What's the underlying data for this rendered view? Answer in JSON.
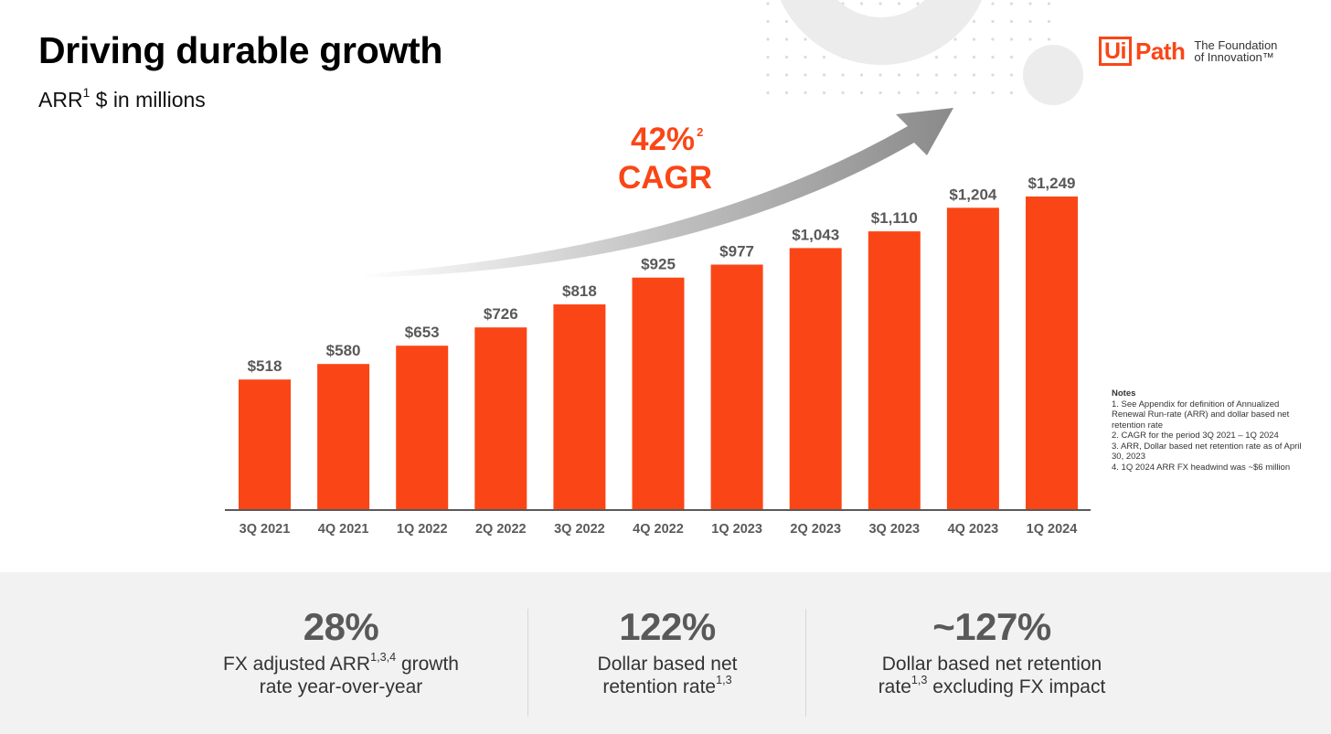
{
  "header": {
    "title": "Driving durable growth",
    "subtitle_main": "ARR",
    "subtitle_sup": "1",
    "subtitle_rest": " $ in millions"
  },
  "logo": {
    "brand_ui": "Ui",
    "brand_path": "Path",
    "tagline_line1": "The Foundation",
    "tagline_line2": "of Innovation™"
  },
  "cagr": {
    "value": "42%",
    "sup": "2",
    "label": "CAGR"
  },
  "colors": {
    "bar": "#fa4616",
    "label": "#595959",
    "accent": "#fa4616"
  },
  "chart_data": {
    "type": "bar",
    "categories": [
      "3Q 2021",
      "4Q 2021",
      "1Q 2022",
      "2Q 2022",
      "3Q 2022",
      "4Q 2022",
      "1Q 2023",
      "2Q 2023",
      "3Q 2023",
      "4Q 2023",
      "1Q 2024"
    ],
    "values": [
      518,
      580,
      653,
      726,
      818,
      925,
      977,
      1043,
      1110,
      1204,
      1249
    ],
    "value_labels": [
      "$518",
      "$580",
      "$653",
      "$726",
      "$818",
      "$925",
      "$977",
      "$1,043",
      "$1,110",
      "$1,204",
      "$1,249"
    ],
    "ylim": [
      0,
      1249
    ],
    "grid": false,
    "legend": false,
    "title": "Driving durable growth",
    "ylabel": "ARR $ in millions"
  },
  "notes": {
    "heading": "Notes",
    "items": [
      "1. See Appendix for definition of Annualized Renewal Run-rate (ARR) and dollar based net retention rate",
      "2. CAGR for the period 3Q 2021 – 1Q 2024",
      "3. ARR, Dollar based net retention rate as of April 30, 2023",
      "4. 1Q 2024 ARR FX headwind was ~$6 million"
    ]
  },
  "stats": [
    {
      "value": "28%",
      "line1_main": "FX adjusted ARR",
      "line1_sup": "1,3,4",
      "line1_rest": " growth",
      "line2_main": "rate year-over-year",
      "line2_sup": "",
      "line2_rest": ""
    },
    {
      "value": "122%",
      "line1_main": "Dollar based net",
      "line1_sup": "",
      "line1_rest": "",
      "line2_main": "retention rate",
      "line2_sup": "1,3",
      "line2_rest": ""
    },
    {
      "value": "~127%",
      "line1_main": "Dollar based net retention",
      "line1_sup": "",
      "line1_rest": "",
      "line2_main": "rate",
      "line2_sup": "1,3",
      "line2_rest": " excluding FX impact"
    }
  ]
}
